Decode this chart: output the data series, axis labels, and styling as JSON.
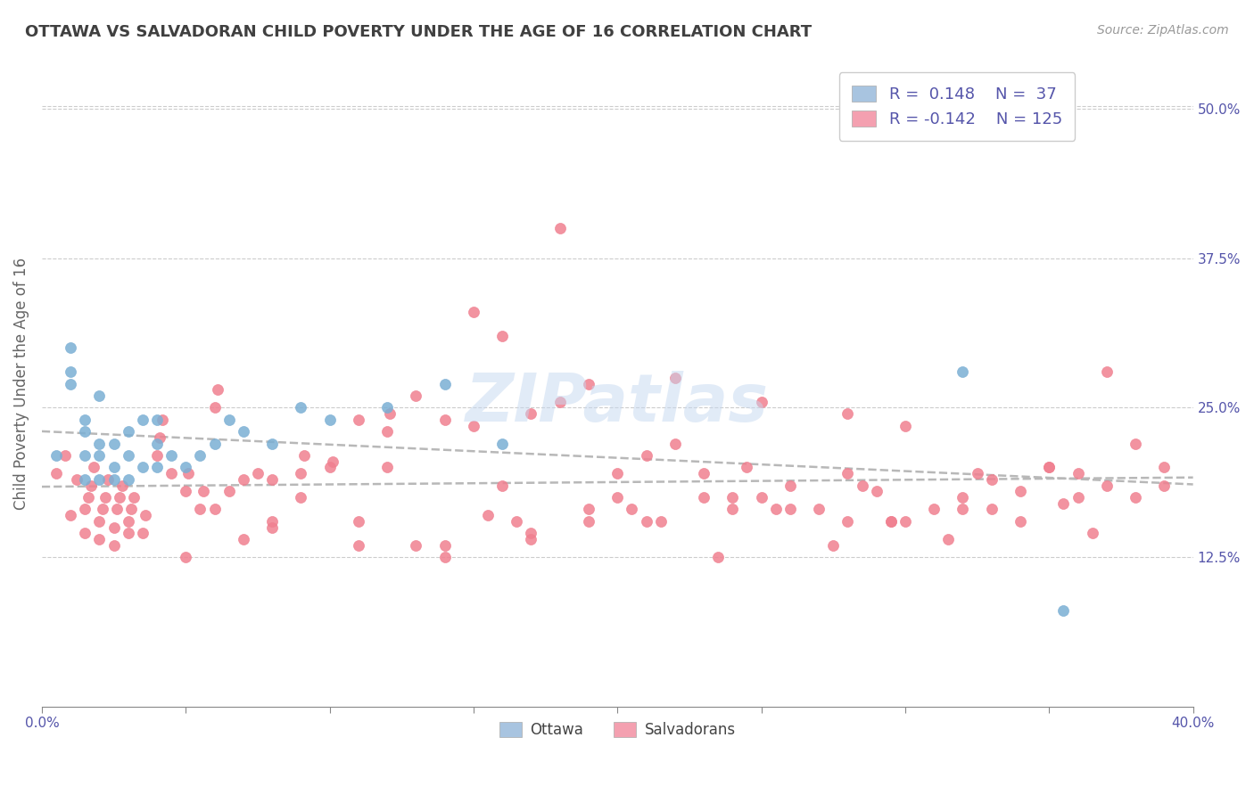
{
  "title": "OTTAWA VS SALVADORAN CHILD POVERTY UNDER THE AGE OF 16 CORRELATION CHART",
  "source": "Source: ZipAtlas.com",
  "ylabel": "Child Poverty Under the Age of 16",
  "xlim": [
    0.0,
    0.4
  ],
  "ylim": [
    0.0,
    0.54
  ],
  "xticks": [
    0.0,
    0.05,
    0.1,
    0.15,
    0.2,
    0.25,
    0.3,
    0.35,
    0.4
  ],
  "yticks_right": [
    0.125,
    0.25,
    0.375,
    0.5
  ],
  "ytick_labels_right": [
    "12.5%",
    "25.0%",
    "37.5%",
    "50.0%"
  ],
  "ottawa_color": "#a8c4e0",
  "salvadoran_color": "#f4a0b0",
  "ottawa_scatter_color": "#7aafd4",
  "salvadoran_scatter_color": "#f08090",
  "trendline_color": "#b8b8b8",
  "legend_r_ottawa": "R =  0.148",
  "legend_n_ottawa": "N =  37",
  "legend_r_salvadoran": "R = -0.142",
  "legend_n_salvadoran": "N = 125",
  "watermark": "ZIPatlas",
  "title_color": "#404040",
  "axis_label_color": "#5555aa",
  "ottawa_x": [
    0.005,
    0.01,
    0.01,
    0.01,
    0.015,
    0.015,
    0.015,
    0.015,
    0.02,
    0.02,
    0.02,
    0.02,
    0.025,
    0.025,
    0.025,
    0.03,
    0.03,
    0.03,
    0.035,
    0.035,
    0.04,
    0.04,
    0.04,
    0.045,
    0.05,
    0.055,
    0.06,
    0.065,
    0.07,
    0.08,
    0.09,
    0.1,
    0.12,
    0.14,
    0.16,
    0.32,
    0.355
  ],
  "ottawa_y": [
    0.21,
    0.27,
    0.28,
    0.3,
    0.19,
    0.21,
    0.23,
    0.24,
    0.19,
    0.21,
    0.22,
    0.26,
    0.19,
    0.2,
    0.22,
    0.19,
    0.21,
    0.23,
    0.2,
    0.24,
    0.2,
    0.22,
    0.24,
    0.21,
    0.2,
    0.21,
    0.22,
    0.24,
    0.23,
    0.22,
    0.25,
    0.24,
    0.25,
    0.27,
    0.22,
    0.28,
    0.08
  ],
  "salvadoran_x": [
    0.005,
    0.008,
    0.01,
    0.012,
    0.015,
    0.015,
    0.016,
    0.017,
    0.018,
    0.02,
    0.02,
    0.021,
    0.022,
    0.023,
    0.025,
    0.025,
    0.026,
    0.027,
    0.028,
    0.03,
    0.03,
    0.031,
    0.032,
    0.035,
    0.036,
    0.04,
    0.041,
    0.042,
    0.045,
    0.05,
    0.051,
    0.055,
    0.056,
    0.06,
    0.061,
    0.065,
    0.07,
    0.075,
    0.08,
    0.09,
    0.091,
    0.1,
    0.101,
    0.11,
    0.12,
    0.121,
    0.13,
    0.14,
    0.15,
    0.16,
    0.17,
    0.18,
    0.19,
    0.2,
    0.21,
    0.22,
    0.23,
    0.24,
    0.25,
    0.26,
    0.27,
    0.28,
    0.29,
    0.3,
    0.31,
    0.32,
    0.33,
    0.34,
    0.35,
    0.36,
    0.37,
    0.38,
    0.39,
    0.15,
    0.18,
    0.22,
    0.25,
    0.28,
    0.3,
    0.32,
    0.17,
    0.21,
    0.26,
    0.35,
    0.38,
    0.14,
    0.19,
    0.23,
    0.28,
    0.33,
    0.37,
    0.08,
    0.12,
    0.16,
    0.2,
    0.24,
    0.295,
    0.34,
    0.36,
    0.07,
    0.11,
    0.155,
    0.19,
    0.235,
    0.275,
    0.315,
    0.355,
    0.39,
    0.06,
    0.09,
    0.13,
    0.165,
    0.205,
    0.245,
    0.285,
    0.325,
    0.365,
    0.05,
    0.08,
    0.11,
    0.14,
    0.17,
    0.215,
    0.255,
    0.295
  ],
  "salvadoran_y": [
    0.195,
    0.21,
    0.16,
    0.19,
    0.145,
    0.165,
    0.175,
    0.185,
    0.2,
    0.14,
    0.155,
    0.165,
    0.175,
    0.19,
    0.135,
    0.15,
    0.165,
    0.175,
    0.185,
    0.145,
    0.155,
    0.165,
    0.175,
    0.145,
    0.16,
    0.21,
    0.225,
    0.24,
    0.195,
    0.18,
    0.195,
    0.165,
    0.18,
    0.25,
    0.265,
    0.18,
    0.19,
    0.195,
    0.19,
    0.195,
    0.21,
    0.2,
    0.205,
    0.24,
    0.23,
    0.245,
    0.26,
    0.24,
    0.235,
    0.31,
    0.245,
    0.255,
    0.27,
    0.195,
    0.21,
    0.22,
    0.195,
    0.175,
    0.175,
    0.165,
    0.165,
    0.155,
    0.18,
    0.155,
    0.165,
    0.175,
    0.165,
    0.155,
    0.2,
    0.195,
    0.28,
    0.22,
    0.2,
    0.33,
    0.4,
    0.275,
    0.255,
    0.245,
    0.235,
    0.165,
    0.145,
    0.155,
    0.185,
    0.2,
    0.175,
    0.135,
    0.155,
    0.175,
    0.195,
    0.19,
    0.185,
    0.15,
    0.2,
    0.185,
    0.175,
    0.165,
    0.155,
    0.18,
    0.175,
    0.14,
    0.155,
    0.16,
    0.165,
    0.125,
    0.135,
    0.14,
    0.17,
    0.185,
    0.165,
    0.175,
    0.135,
    0.155,
    0.165,
    0.2,
    0.185,
    0.195,
    0.145,
    0.125,
    0.155,
    0.135,
    0.125,
    0.14,
    0.155,
    0.165,
    0.155
  ]
}
